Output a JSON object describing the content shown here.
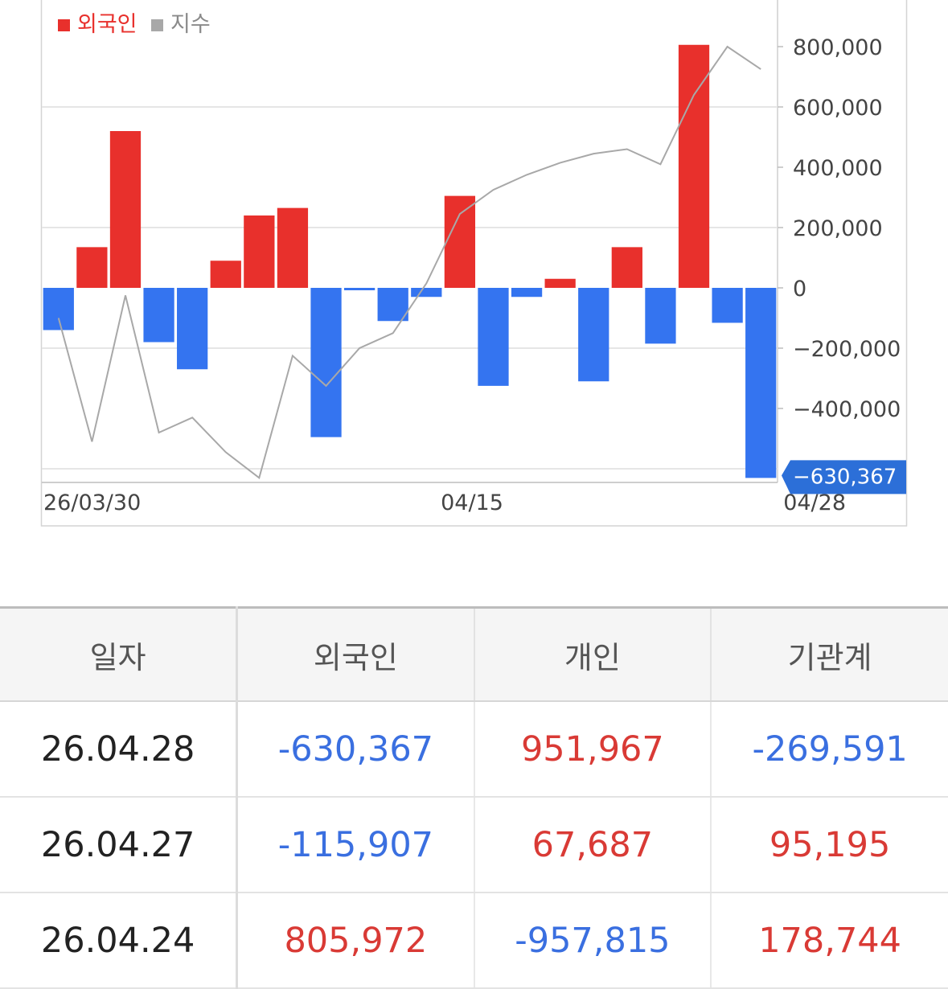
{
  "chart_data": {
    "type": "bar",
    "legend": [
      {
        "name": "외국인",
        "color": "#e8302c"
      },
      {
        "name": "지수",
        "color": "#a8a8a8"
      }
    ],
    "legend_position": "top-left",
    "x_tick_labels": [
      "26/03/30",
      "04/15",
      "04/28"
    ],
    "y_ticks": [
      {
        "value": 800000,
        "label": "800,000"
      },
      {
        "value": 600000,
        "label": "600,000"
      },
      {
        "value": 400000,
        "label": "400,000"
      },
      {
        "value": 200000,
        "label": "200,000"
      },
      {
        "value": 0,
        "label": "0"
      },
      {
        "value": -200000,
        "label": "−200,000"
      },
      {
        "value": -400000,
        "label": "−400,000"
      }
    ],
    "ylim": [
      -640000,
      1000000
    ],
    "grid": true,
    "positive_color": "#e8302c",
    "negative_color": "#3474f0",
    "series": [
      {
        "name": "외국인",
        "values": [
          -140000,
          135000,
          520000,
          -180000,
          -270000,
          90000,
          240000,
          265000,
          -495000,
          -8000,
          -110000,
          -30000,
          305000,
          -325000,
          -30000,
          30000,
          -310000,
          135000,
          -185000,
          805972,
          -115907,
          -630367
        ]
      },
      {
        "name": "지수",
        "values": [
          -100000,
          -510000,
          -25000,
          -480000,
          -430000,
          -545000,
          -630000,
          -225000,
          -325000,
          -200000,
          -150000,
          15000,
          245000,
          325000,
          375000,
          415000,
          445000,
          460000,
          410000,
          640000,
          800000,
          725000
        ]
      }
    ],
    "last_value_label": "−630,367"
  },
  "table": {
    "headers": [
      "일자",
      "외국인",
      "개인",
      "기관계"
    ],
    "rows": [
      {
        "date": "26.04.28",
        "foreign": "-630,367",
        "individual": "951,967",
        "institution": "-269,591"
      },
      {
        "date": "26.04.27",
        "foreign": "-115,907",
        "individual": "67,687",
        "institution": "95,195"
      },
      {
        "date": "26.04.24",
        "foreign": "805,972",
        "individual": "-957,815",
        "institution": "178,744"
      }
    ]
  }
}
